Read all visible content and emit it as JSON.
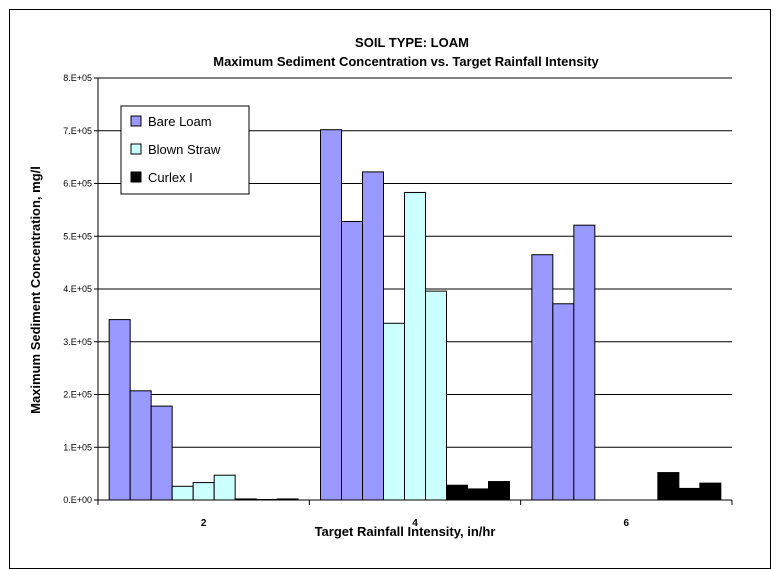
{
  "chart_data": {
    "type": "bar",
    "title": "SOIL TYPE: LOAM",
    "subtitle": "Maximum Sediment Concentration vs. Target Rainfall Intensity",
    "xlabel": "Target Rainfall Intensity, in/hr",
    "ylabel": "Maximum Sediment Concentration, mg/l",
    "ylim": [
      0,
      800000
    ],
    "yticks": [
      "0.E+00",
      "1.E+05",
      "2.E+05",
      "3.E+05",
      "4.E+05",
      "5.E+05",
      "6.E+05",
      "7.E+05",
      "8.E+05"
    ],
    "categories": [
      "2",
      "4",
      "6"
    ],
    "grid": true,
    "legend_position": "top-left",
    "series": [
      {
        "name": "Bare Loam",
        "color": "#9999ff",
        "values": [
          [
            342000,
            207000,
            178000
          ],
          [
            702000,
            528000,
            622000
          ],
          [
            465000,
            372000,
            521000
          ]
        ]
      },
      {
        "name": "Blown Straw",
        "color": "#ccffff",
        "values": [
          [
            26000,
            33000,
            47000
          ],
          [
            335000,
            583000,
            396000
          ],
          [
            0,
            0,
            0
          ]
        ]
      },
      {
        "name": "Curlex I",
        "color": "#000000",
        "values": [
          [
            2000,
            1000,
            2000
          ],
          [
            28000,
            21000,
            35000
          ],
          [
            52000,
            22000,
            32000
          ]
        ]
      }
    ]
  }
}
